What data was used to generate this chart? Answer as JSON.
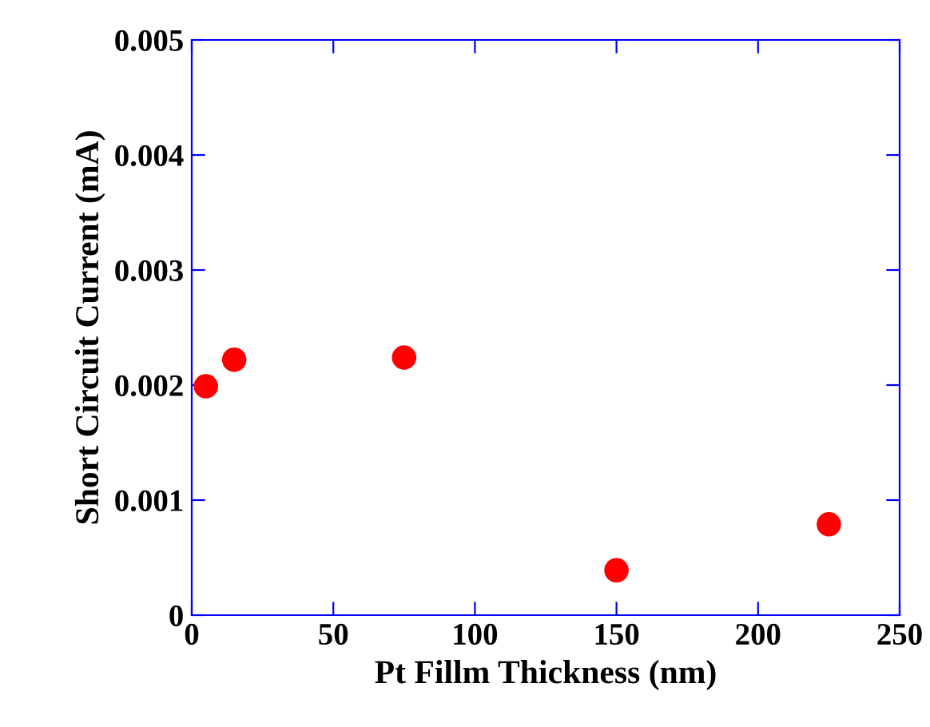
{
  "chart_data": {
    "type": "scatter",
    "xlabel": "Pt Fillm Thickness (nm)",
    "ylabel": "Short Circuit Current (mA)",
    "x": [
      5,
      15,
      75,
      150,
      225
    ],
    "series": [
      {
        "color": "#ff0000",
        "values": [
          0.00199,
          0.00222,
          0.00224,
          0.00039,
          0.00079
        ]
      }
    ],
    "xlim": [
      0,
      250
    ],
    "xticks": [
      0,
      50,
      100,
      150,
      200,
      250
    ],
    "ylim": [
      0,
      0.005
    ],
    "yticks": [
      {
        "value": 0,
        "label": "0"
      },
      0.001,
      0.002,
      0.003,
      0.004,
      0.005
    ],
    "marker": "circle",
    "grid": false,
    "legend": false
  }
}
